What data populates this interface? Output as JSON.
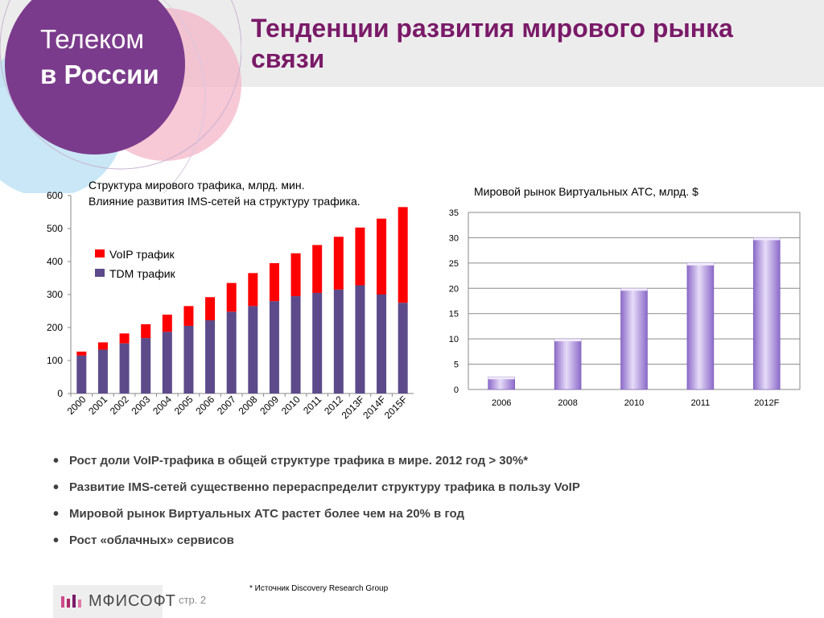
{
  "header": {
    "brand_line1": "Телеком",
    "brand_line2": "в России",
    "title": "Тенденции развития мирового рынка связи"
  },
  "colors": {
    "title": "#7a1a68",
    "voip": "#ff0000",
    "tdm": "#5c4a8a",
    "pbx_bar": "#b59fe0",
    "circle_purple": "#7b3b8c",
    "circle_pink": "#f4b6c8",
    "circle_blue": "#b7dff3"
  },
  "traffic": {
    "title_line1": "Структура мирового трафика, млрд. мин.",
    "title_line2": "Влияние развития IMS-сетей на структуру трафика.",
    "legend_voip": "VoIP трафик",
    "legend_tdm": "TDM трафик"
  },
  "pbx": {
    "title": "Мировой рынок Виртуальных АТС, млрд. $"
  },
  "chart_data": [
    {
      "type": "bar",
      "stacked": true,
      "title": "Структура мирового трафика, млрд. мин.",
      "subtitle": "Влияние развития IMS-сетей на структуру трафика.",
      "categories": [
        "2000",
        "2001",
        "2002",
        "2003",
        "2004",
        "2005",
        "2006",
        "2007",
        "2008",
        "2009",
        "2010",
        "2011",
        "2012",
        "2013F",
        "2014F",
        "2015F"
      ],
      "series": [
        {
          "name": "TDM трафик",
          "values": [
            115,
            133,
            152,
            168,
            187,
            205,
            222,
            248,
            265,
            280,
            295,
            305,
            315,
            328,
            300,
            275
          ]
        },
        {
          "name": "VoIP трафик",
          "values": [
            12,
            22,
            30,
            42,
            52,
            60,
            70,
            87,
            100,
            115,
            130,
            145,
            160,
            175,
            230,
            290
          ]
        }
      ],
      "ylim": [
        0,
        600
      ],
      "yticks": [
        0,
        100,
        200,
        300,
        400,
        500,
        600
      ],
      "legend": "top-left",
      "grid": false
    },
    {
      "type": "bar",
      "title": "Мировой рынок Виртуальных АТС, млрд. $",
      "categories": [
        "2006",
        "2008",
        "2010",
        "2011",
        "2012F"
      ],
      "values": [
        2.5,
        10,
        20,
        25,
        30
      ],
      "ylim": [
        0,
        35
      ],
      "yticks": [
        0,
        5,
        10,
        15,
        20,
        25,
        30,
        35
      ],
      "grid": true
    }
  ],
  "bullets": [
    "Рост доли VoIP-трафика в общей структуре трафика в мире. 2012 год > 30%*",
    "Развитие IMS-сетей существенно перераспределит структуру трафика в пользу VoIP",
    "Мировой рынок Виртуальных АТС растет более чем на 20% в год",
    "Рост «облачных» сервисов"
  ],
  "footer": {
    "logo": "МФИСОФТ",
    "page": "стр. 2",
    "source": "* Источник Discovery Research Group"
  }
}
